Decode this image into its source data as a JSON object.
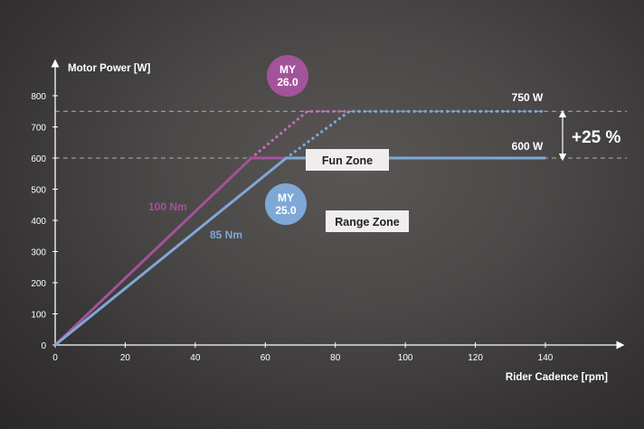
{
  "chart_data": {
    "type": "line",
    "ylabel": "Motor Power [W]",
    "xlabel": "Rider Cadence [rpm]",
    "xlim": [
      0,
      140
    ],
    "ylim": [
      0,
      800
    ],
    "x_ticks": [
      0,
      20,
      40,
      60,
      80,
      100,
      120,
      140
    ],
    "y_ticks": [
      0,
      100,
      200,
      300,
      400,
      500,
      600,
      700,
      800
    ],
    "grid": false,
    "colors": {
      "purple": "#a3539a",
      "blue": "#7fa8d6",
      "purple_dotted": "#c070b4"
    },
    "series": [
      {
        "name": "100 Nm",
        "color": "#a3539a",
        "points": [
          [
            0,
            0
          ],
          [
            56,
            600
          ],
          [
            66,
            600
          ]
        ]
      },
      {
        "name": "85 Nm",
        "color": "#7fa8d6",
        "points": [
          [
            0,
            0
          ],
          [
            66,
            600
          ],
          [
            140,
            600
          ]
        ]
      }
    ],
    "boosted_series": [
      {
        "color": "#c070b4",
        "style": "dotted",
        "points": [
          [
            56,
            600
          ],
          [
            72,
            750
          ],
          [
            84,
            750
          ]
        ]
      },
      {
        "color": "#7fa8d6",
        "style": "dotted",
        "points": [
          [
            66,
            600
          ],
          [
            84,
            750
          ],
          [
            140,
            750
          ]
        ]
      }
    ],
    "reference_lines": [
      {
        "y": 750,
        "label": "750 W"
      },
      {
        "y": 600,
        "label": "600 W"
      }
    ],
    "increase_label": "+25 %",
    "badges": [
      {
        "line1": "MY",
        "line2": "26.0",
        "color": "#a3539a"
      },
      {
        "line1": "MY",
        "line2": "25.0",
        "color": "#7fa8d6"
      }
    ],
    "zones": [
      {
        "label": "Fun Zone"
      },
      {
        "label": "Range Zone"
      }
    ]
  }
}
